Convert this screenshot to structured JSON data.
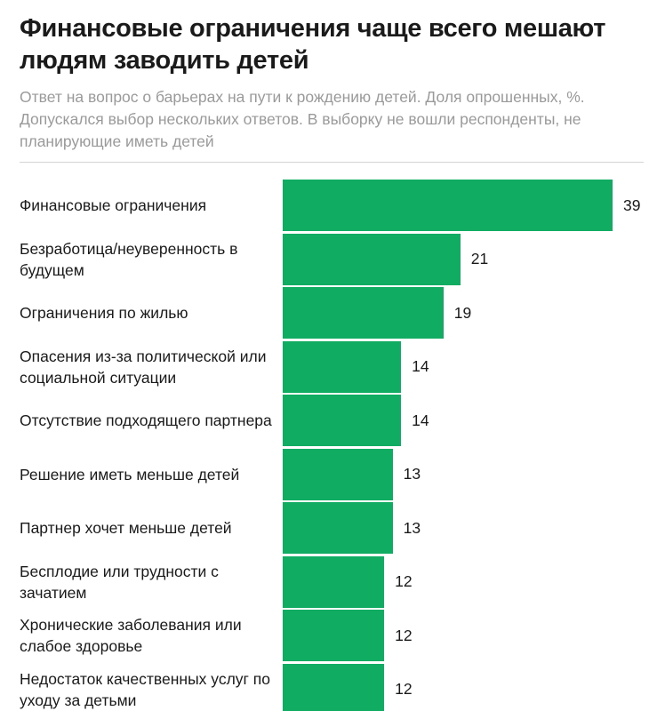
{
  "title": "Финансовые ограничения чаще всего мешают людям заводить детей",
  "subtitle": "Ответ на вопрос о барьерах на пути к рождению детей. Доля опрошенных, %. Допускался выбор нескольких ответов. В выборку не вошли респонденты, не планирующие иметь детей",
  "colors": {
    "bar": "#0fac62",
    "subtitle": "#9a9a9a"
  },
  "chart_data": {
    "type": "bar",
    "orientation": "horizontal",
    "title": "Финансовые ограничения чаще всего мешают людям заводить детей",
    "subtitle": "Ответ на вопрос о барьерах на пути к рождению детей. Доля опрошенных, %. Допускался выбор нескольких ответов. В выборку не вошли респонденты, не планирующие иметь детей",
    "categories": [
      "Финансовые ограничения",
      "Безработица/неуверенность в будущем",
      "Ограничения по жилью",
      "Опасения из-за политической или социальной ситуации",
      "Отсутствие подходящего партнера",
      "Решение иметь меньше детей",
      "Партнер хочет меньше детей",
      "Бесплодие или трудности с зачатием",
      "Хронические заболевания или слабое здоровье",
      "Недостаток качественных услуг по уходу за детьми"
    ],
    "values": [
      39,
      21,
      19,
      14,
      14,
      13,
      13,
      12,
      12,
      12
    ],
    "value_labels": [
      "39",
      "21",
      "19",
      "14",
      "14",
      "13",
      "13",
      "12",
      "12",
      "12"
    ],
    "xlim": [
      0,
      39
    ],
    "grid": false,
    "legend": "none"
  }
}
